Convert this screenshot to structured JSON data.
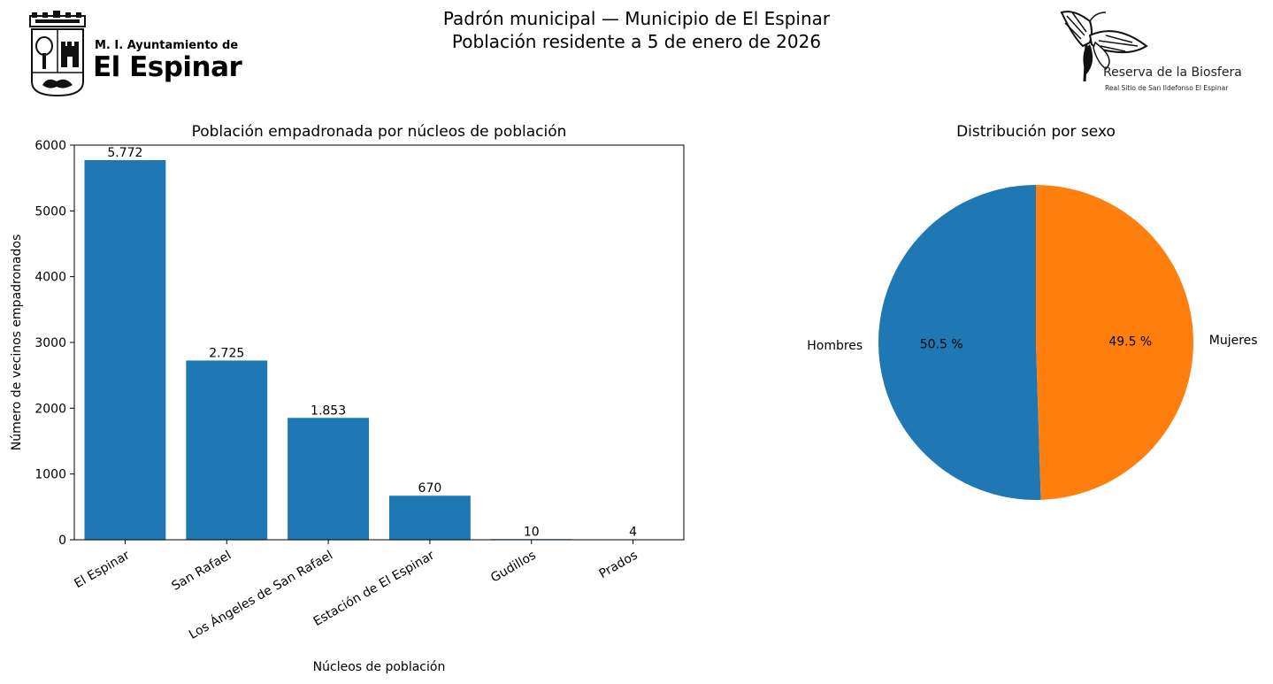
{
  "header": {
    "title_line1": "Padrón municipal — Municipio de El Espinar",
    "title_line2": "Población residente a 5 de enero de 2026",
    "logo_left_line1": "M. I. Ayuntamiento de",
    "logo_left_line2": "El Espinar",
    "logo_right_line1": "Reserva de la Biosfera",
    "logo_right_line2": "Real Sitio de San Ildefonso El Espinar"
  },
  "chart_data": [
    {
      "type": "bar",
      "title": "Población empadronada por núcleos de población",
      "xlabel": "Núcleos de población",
      "ylabel": "Número de vecinos empadronados",
      "categories": [
        "El Espinar",
        "San Rafael",
        "Los Ángeles de San Rafael",
        "Estación de El Espinar",
        "Gudillos",
        "Prados"
      ],
      "values": [
        5772,
        2725,
        1853,
        670,
        10,
        4
      ],
      "value_labels": [
        "5.772",
        "2.725",
        "1.853",
        "670",
        "10",
        "4"
      ],
      "ylim": [
        0,
        6000
      ],
      "yticks": [
        0,
        1000,
        2000,
        3000,
        4000,
        5000,
        6000
      ],
      "bar_color": "#1f77b4",
      "grid": false
    },
    {
      "type": "pie",
      "title": "Distribución por sexo",
      "labels": [
        "Hombres",
        "Mujeres"
      ],
      "values": [
        50.5,
        49.5
      ],
      "value_labels": [
        "50.5 %",
        "49.5 %"
      ],
      "colors": [
        "#1f77b4",
        "#ff7f0e"
      ],
      "startangle": 90
    }
  ]
}
